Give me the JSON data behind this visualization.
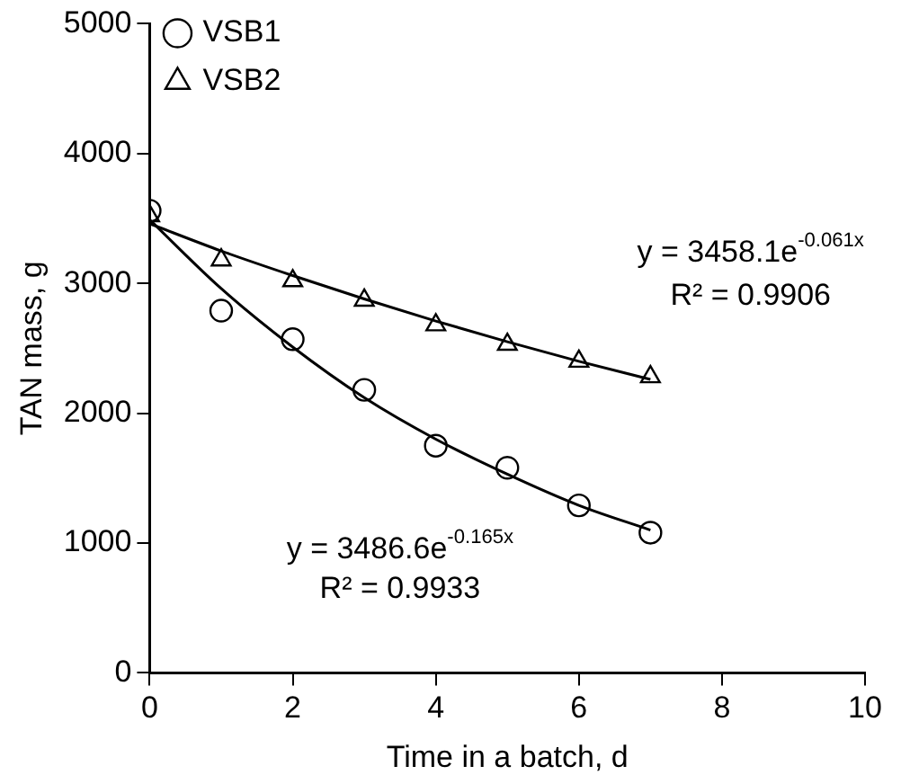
{
  "chart_data": {
    "type": "scatter",
    "xlabel": "Time in a batch, d",
    "ylabel": "TAN mass, g",
    "xlim": [
      0,
      10
    ],
    "xticks": [
      0,
      2,
      4,
      6,
      8,
      10
    ],
    "ylim": [
      0,
      5000
    ],
    "yticks": [
      0,
      1000,
      2000,
      3000,
      4000,
      5000
    ],
    "grid": false,
    "legend": "top left",
    "series": [
      {
        "name": "VSB1",
        "type": "scatter",
        "marker": "circle",
        "color": "#000000",
        "x": [
          0,
          1,
          2,
          3,
          4,
          5,
          6,
          7
        ],
        "values": [
          3560,
          2790,
          2570,
          2180,
          1750,
          1580,
          1290,
          1080
        ]
      },
      {
        "name": "VSB2",
        "type": "scatter",
        "marker": "triangle",
        "color": "#000000",
        "x": [
          0,
          1,
          2,
          3,
          4,
          5,
          6,
          7
        ],
        "values": [
          3520,
          3180,
          3020,
          2870,
          2680,
          2530,
          2400,
          2280
        ]
      },
      {
        "type": "line",
        "marker": "none",
        "line_style": "solid",
        "color": "#000000",
        "x": [
          0,
          1,
          2,
          3,
          4,
          5,
          6,
          7
        ],
        "values": [
          3490,
          2960,
          2510,
          2120,
          1800,
          1530,
          1290,
          1100
        ]
      },
      {
        "type": "line",
        "marker": "none",
        "line_style": "solid",
        "color": "#000000",
        "x": [
          0,
          1,
          2,
          3,
          4,
          5,
          6,
          7
        ],
        "values": [
          3460,
          3250,
          3060,
          2880,
          2710,
          2550,
          2400,
          2260
        ]
      }
    ],
    "annotations": [
      "y = 3458.1e$^{-0.061x}$",
      "R² = 0.9906",
      "y = 3486.6e$^{-0.165x}$",
      "R² = 0.9933"
    ]
  }
}
